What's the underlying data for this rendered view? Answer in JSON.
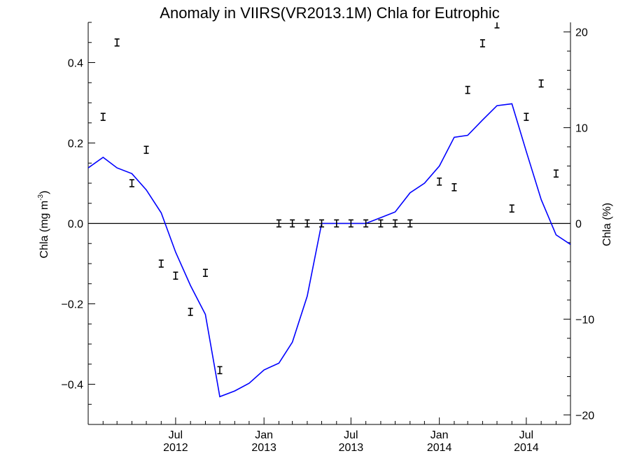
{
  "chart_data": {
    "type": "line",
    "title": "Anomaly in VIIRS(VR2013.1M) Chla for Eutrophic",
    "ylabel_left": "Chla (mg m",
    "ylabel_left_sup": "-3",
    "ylabel_left_close": ")",
    "ylabel_right": "Chla (%)",
    "xlim": [
      "2012-01-01",
      "2014-10-01"
    ],
    "ylim_left": [
      -0.5,
      0.5
    ],
    "ylim_right": [
      -21.0,
      21.0
    ],
    "zero_line": 0,
    "x_ticks": [
      {
        "date": "2012-07-01",
        "line1": "Jul",
        "line2": "2012"
      },
      {
        "date": "2013-01-01",
        "line1": "Jan",
        "line2": "2013"
      },
      {
        "date": "2013-07-01",
        "line1": "Jul",
        "line2": "2013"
      },
      {
        "date": "2014-01-01",
        "line1": "Jan",
        "line2": "2014"
      },
      {
        "date": "2014-07-01",
        "line1": "Jul",
        "line2": "2014"
      }
    ],
    "y_ticks_left": [
      {
        "value": 0.4,
        "label": "0.4"
      },
      {
        "value": 0.2,
        "label": "0.2"
      },
      {
        "value": 0.0,
        "label": "0.0"
      },
      {
        "value": -0.2,
        "label": "−0.2"
      },
      {
        "value": -0.4,
        "label": "−0.4"
      }
    ],
    "y_ticks_right": [
      {
        "value": 20,
        "label": "20"
      },
      {
        "value": 10,
        "label": "10"
      },
      {
        "value": 0,
        "label": "0"
      },
      {
        "value": -10,
        "label": "−10"
      },
      {
        "value": -20,
        "label": "−20"
      }
    ],
    "series": [
      {
        "axis": "right",
        "color": "#0000ff",
        "style": "line",
        "points": [
          [
            "2012-01-01",
            5.8
          ],
          [
            "2012-02-01",
            6.9
          ],
          [
            "2012-03-01",
            5.8
          ],
          [
            "2012-04-01",
            5.2
          ],
          [
            "2012-05-01",
            3.5
          ],
          [
            "2012-06-01",
            1.1
          ],
          [
            "2012-07-01",
            -3.0
          ],
          [
            "2012-08-01",
            -6.5
          ],
          [
            "2012-09-01",
            -9.5
          ],
          [
            "2012-10-01",
            -18.1
          ],
          [
            "2012-11-01",
            -17.5
          ],
          [
            "2012-12-01",
            -16.7
          ],
          [
            "2013-01-01",
            -15.3
          ],
          [
            "2013-02-01",
            -14.6
          ],
          [
            "2013-03-01",
            -12.4
          ],
          [
            "2013-04-01",
            -7.6
          ],
          [
            "2013-05-01",
            0.0
          ],
          [
            "2013-06-01",
            0.0
          ],
          [
            "2013-07-01",
            0.0
          ],
          [
            "2013-08-01",
            0.0
          ],
          [
            "2013-09-01",
            0.6
          ],
          [
            "2013-10-01",
            1.2
          ],
          [
            "2013-11-01",
            3.2
          ],
          [
            "2013-12-01",
            4.2
          ],
          [
            "2014-01-01",
            6.0
          ],
          [
            "2014-02-01",
            9.0
          ],
          [
            "2014-03-01",
            9.2
          ],
          [
            "2014-04-01",
            10.8
          ],
          [
            "2014-05-01",
            12.3
          ],
          [
            "2014-06-01",
            12.5
          ],
          [
            "2014-07-01",
            7.5
          ],
          [
            "2014-08-01",
            2.5
          ],
          [
            "2014-09-01",
            -1.2
          ],
          [
            "2014-10-01",
            -2.2
          ]
        ]
      },
      {
        "axis": "left",
        "color": "#000000",
        "style": "errorbar",
        "points": [
          [
            "2012-02-01",
            0.265
          ],
          [
            "2012-03-01",
            0.45
          ],
          [
            "2012-04-01",
            0.1
          ],
          [
            "2012-05-01",
            0.183
          ],
          [
            "2012-06-01",
            -0.1
          ],
          [
            "2012-07-01",
            -0.13
          ],
          [
            "2012-08-01",
            -0.22
          ],
          [
            "2012-09-01",
            -0.123
          ],
          [
            "2012-10-01",
            -0.365
          ],
          [
            "2013-02-01",
            0.0
          ],
          [
            "2013-03-01",
            0.0
          ],
          [
            "2013-04-01",
            0.0
          ],
          [
            "2013-05-01",
            0.0
          ],
          [
            "2013-06-01",
            0.0
          ],
          [
            "2013-07-01",
            0.0
          ],
          [
            "2013-08-01",
            0.0
          ],
          [
            "2013-09-01",
            0.0
          ],
          [
            "2013-10-01",
            0.0
          ],
          [
            "2013-11-01",
            0.0
          ],
          [
            "2014-01-01",
            0.104
          ],
          [
            "2014-02-01",
            0.09
          ],
          [
            "2014-03-01",
            0.332
          ],
          [
            "2014-04-01",
            0.448
          ],
          [
            "2014-05-01",
            0.495
          ],
          [
            "2014-06-01",
            0.037
          ],
          [
            "2014-07-01",
            0.265
          ],
          [
            "2014-08-01",
            0.348
          ],
          [
            "2014-09-01",
            0.124
          ]
        ]
      }
    ]
  }
}
